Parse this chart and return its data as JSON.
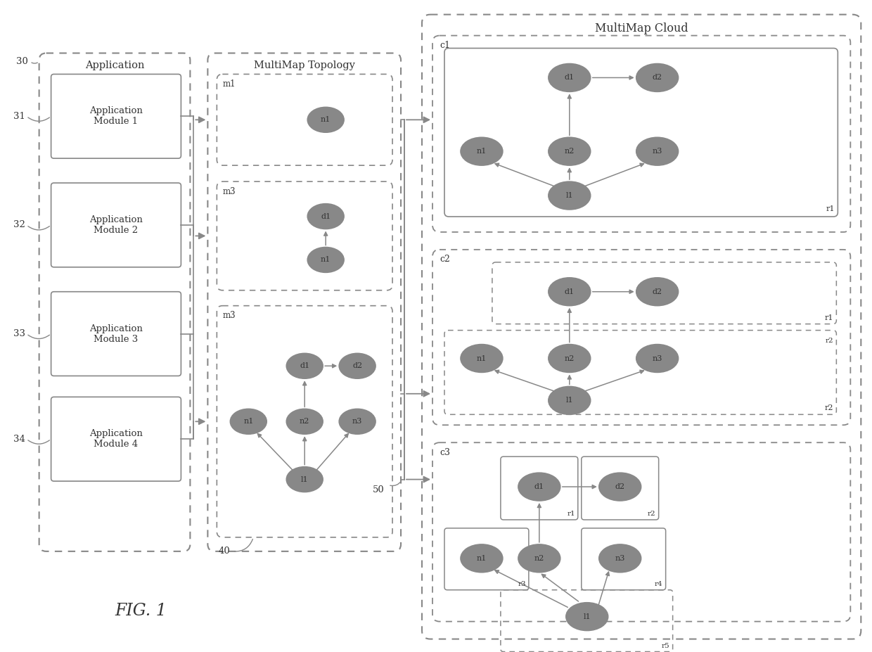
{
  "bg_color": "#ffffff",
  "fig_label": "FIG. 1",
  "app_label": "Application",
  "topo_label": "MultiMap Topology",
  "cloud_label": "MultiMap Cloud",
  "app_modules": [
    "Application\nModule 1",
    "Application\nModule 2",
    "Application\nModule 3",
    "Application\nModule 4"
  ],
  "app_refs": [
    "31",
    "32",
    "33",
    "34"
  ],
  "ref_30": "30",
  "ref_40": "40",
  "ref_50": "50",
  "line_color": "#888888",
  "text_color": "#333333"
}
